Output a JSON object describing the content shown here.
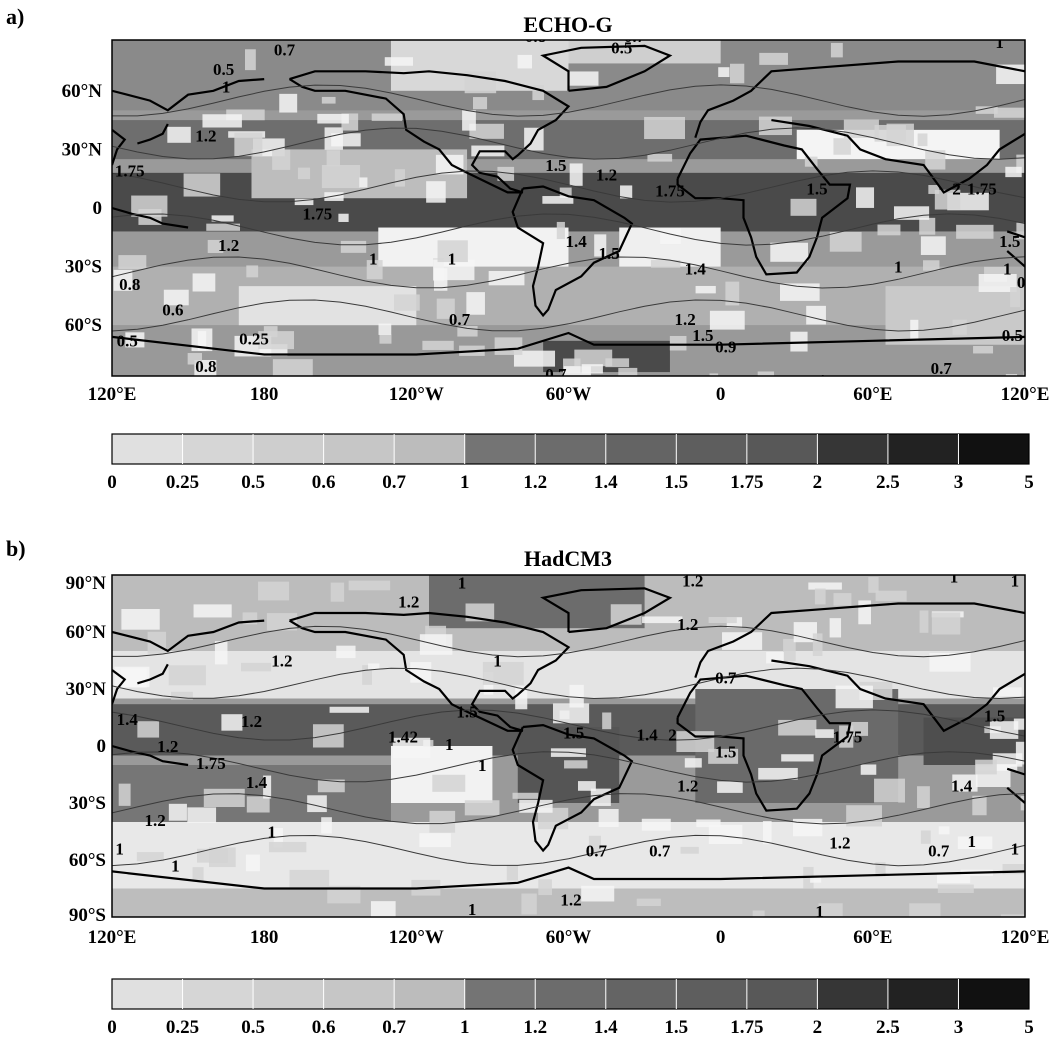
{
  "panels": [
    {
      "letter": "a)",
      "title": "ECHO-G",
      "lat_ticks": [
        {
          "value": 60,
          "label": "60°N"
        },
        {
          "value": 30,
          "label": "30°N"
        },
        {
          "value": 0,
          "label": "0"
        },
        {
          "value": -30,
          "label": "30°S"
        },
        {
          "value": -60,
          "label": "60°S"
        }
      ],
      "lon_ticks": [
        {
          "value": 120,
          "label": "120°E"
        },
        {
          "value": 180,
          "label": "180"
        },
        {
          "value": 240,
          "label": "120°W"
        },
        {
          "value": 300,
          "label": "60°W"
        },
        {
          "value": 360,
          "label": "0"
        },
        {
          "value": 420,
          "label": "60°E"
        },
        {
          "value": 480,
          "label": "120°E"
        }
      ],
      "contour_labels": [
        {
          "text": "0.7",
          "lon": 188,
          "lat": 80
        },
        {
          "text": "0.8",
          "lon": 287,
          "lat": 87
        },
        {
          "text": "0.7",
          "lon": 326,
          "lat": 87
        },
        {
          "text": "0.5",
          "lon": 321,
          "lat": 81
        },
        {
          "text": "1",
          "lon": 470,
          "lat": 84
        },
        {
          "text": "0.5",
          "lon": 164,
          "lat": 70
        },
        {
          "text": "1",
          "lon": 165,
          "lat": 61
        },
        {
          "text": "1.2",
          "lon": 157,
          "lat": 36
        },
        {
          "text": "1.75",
          "lon": 127,
          "lat": 18
        },
        {
          "text": "1.2",
          "lon": 315,
          "lat": 16
        },
        {
          "text": "1.5",
          "lon": 295,
          "lat": 21
        },
        {
          "text": "1.75",
          "lon": 340,
          "lat": 8
        },
        {
          "text": "1.5",
          "lon": 398,
          "lat": 9
        },
        {
          "text": "2",
          "lon": 453,
          "lat": 9
        },
        {
          "text": "1.75",
          "lon": 463,
          "lat": 9
        },
        {
          "text": "1.75",
          "lon": 201,
          "lat": -4
        },
        {
          "text": "1.2",
          "lon": 166,
          "lat": -20
        },
        {
          "text": "1",
          "lon": 223,
          "lat": -27
        },
        {
          "text": "1",
          "lon": 254,
          "lat": -27
        },
        {
          "text": "1.4",
          "lon": 303,
          "lat": -18
        },
        {
          "text": "1.5",
          "lon": 316,
          "lat": -24
        },
        {
          "text": "1.4",
          "lon": 350,
          "lat": -32
        },
        {
          "text": "1.5",
          "lon": 474,
          "lat": -18
        },
        {
          "text": "1",
          "lon": 473,
          "lat": -32
        },
        {
          "text": "1",
          "lon": 430,
          "lat": -31
        },
        {
          "text": "0.8",
          "lon": 127,
          "lat": -40
        },
        {
          "text": "0.6",
          "lon": 144,
          "lat": -53
        },
        {
          "text": "0.7",
          "lon": 257,
          "lat": -58
        },
        {
          "text": "0.5",
          "lon": 126,
          "lat": -69
        },
        {
          "text": "0.25",
          "lon": 176,
          "lat": -68
        },
        {
          "text": "0.7",
          "lon": 481,
          "lat": -39
        },
        {
          "text": "0.5",
          "lon": 475,
          "lat": -66
        },
        {
          "text": "0.8",
          "lon": 157,
          "lat": -82
        },
        {
          "text": "1.2",
          "lon": 346,
          "lat": -58
        },
        {
          "text": "1.5",
          "lon": 353,
          "lat": -66
        },
        {
          "text": "0.9",
          "lon": 362,
          "lat": -72
        },
        {
          "text": "0.7",
          "lon": 295,
          "lat": -86
        },
        {
          "text": "0.7",
          "lon": 447,
          "lat": -83
        },
        {
          "text": "1",
          "lon": 400,
          "lat": -89
        }
      ]
    },
    {
      "letter": "b)",
      "title": "HadCM3",
      "lat_ticks": [
        {
          "value": 90,
          "label": "90°N"
        },
        {
          "value": 60,
          "label": "60°N"
        },
        {
          "value": 30,
          "label": "30°N"
        },
        {
          "value": 0,
          "label": "0"
        },
        {
          "value": -30,
          "label": "30°S"
        },
        {
          "value": -60,
          "label": "60°S"
        },
        {
          "value": -90,
          "label": "90°S"
        }
      ],
      "lon_ticks": [
        {
          "value": 120,
          "label": "120°E"
        },
        {
          "value": 180,
          "label": "180"
        },
        {
          "value": 240,
          "label": "120°W"
        },
        {
          "value": 300,
          "label": "60°W"
        },
        {
          "value": 360,
          "label": "0"
        },
        {
          "value": 420,
          "label": "60°E"
        },
        {
          "value": 480,
          "label": "120°E"
        }
      ],
      "contour_labels": [
        {
          "text": "1.2",
          "lon": 349,
          "lat": 86
        },
        {
          "text": "1",
          "lon": 452,
          "lat": 88
        },
        {
          "text": "1",
          "lon": 476,
          "lat": 86
        },
        {
          "text": "1.2",
          "lon": 237,
          "lat": 75
        },
        {
          "text": "1.2",
          "lon": 347,
          "lat": 63
        },
        {
          "text": "1",
          "lon": 258,
          "lat": 85
        },
        {
          "text": "1.2",
          "lon": 187,
          "lat": 44
        },
        {
          "text": "1",
          "lon": 272,
          "lat": 44
        },
        {
          "text": "0.7",
          "lon": 362,
          "lat": 35
        },
        {
          "text": "1.2",
          "lon": 175,
          "lat": 12
        },
        {
          "text": "1.5",
          "lon": 260,
          "lat": 17
        },
        {
          "text": "1.5",
          "lon": 302,
          "lat": 6
        },
        {
          "text": "1.4",
          "lon": 233,
          "lat": 4
        },
        {
          "text": "2",
          "lon": 239,
          "lat": 4
        },
        {
          "text": "1.4",
          "lon": 331,
          "lat": 5
        },
        {
          "text": "2",
          "lon": 341,
          "lat": 5
        },
        {
          "text": "1",
          "lon": 253,
          "lat": 0
        },
        {
          "text": "1.75",
          "lon": 410,
          "lat": 4
        },
        {
          "text": "1.2",
          "lon": 142,
          "lat": -1
        },
        {
          "text": "1.75",
          "lon": 159,
          "lat": -10
        },
        {
          "text": "1.5",
          "lon": 362,
          "lat": -4
        },
        {
          "text": "1.4",
          "lon": 177,
          "lat": -20
        },
        {
          "text": "1.4",
          "lon": 126,
          "lat": 13
        },
        {
          "text": "1.5",
          "lon": 468,
          "lat": 15
        },
        {
          "text": "1",
          "lon": 266,
          "lat": -11
        },
        {
          "text": "1.2",
          "lon": 347,
          "lat": -22
        },
        {
          "text": "1.4",
          "lon": 455,
          "lat": -22
        },
        {
          "text": "1.2",
          "lon": 137,
          "lat": -40
        },
        {
          "text": "1",
          "lon": 183,
          "lat": -46
        },
        {
          "text": "1.2",
          "lon": 407,
          "lat": -52
        },
        {
          "text": "0.7",
          "lon": 311,
          "lat": -56
        },
        {
          "text": "0.7",
          "lon": 336,
          "lat": -56
        },
        {
          "text": "0.7",
          "lon": 446,
          "lat": -56
        },
        {
          "text": "1",
          "lon": 145,
          "lat": -64
        },
        {
          "text": "1",
          "lon": 459,
          "lat": -51
        },
        {
          "text": "1",
          "lon": 476,
          "lat": -55
        },
        {
          "text": "1",
          "lon": 123,
          "lat": -55
        },
        {
          "text": "1.2",
          "lon": 301,
          "lat": -82
        },
        {
          "text": "1",
          "lon": 262,
          "lat": -87
        },
        {
          "text": "1",
          "lon": 399,
          "lat": -88
        }
      ]
    }
  ],
  "colorbar": {
    "ticks": [
      "0",
      "0.25",
      "0.5",
      "0.6",
      "0.7",
      "1",
      "1.2",
      "1.4",
      "1.5",
      "1.75",
      "2",
      "2.5",
      "3",
      "5"
    ],
    "colors": [
      "#e0e0e0",
      "#d6d6d6",
      "#cecece",
      "#c6c6c6",
      "#bcbcbc",
      "#747474",
      "#6c6c6c",
      "#646464",
      "#5e5e5e",
      "#585858",
      "#363636",
      "#222222",
      "#111111"
    ]
  }
}
